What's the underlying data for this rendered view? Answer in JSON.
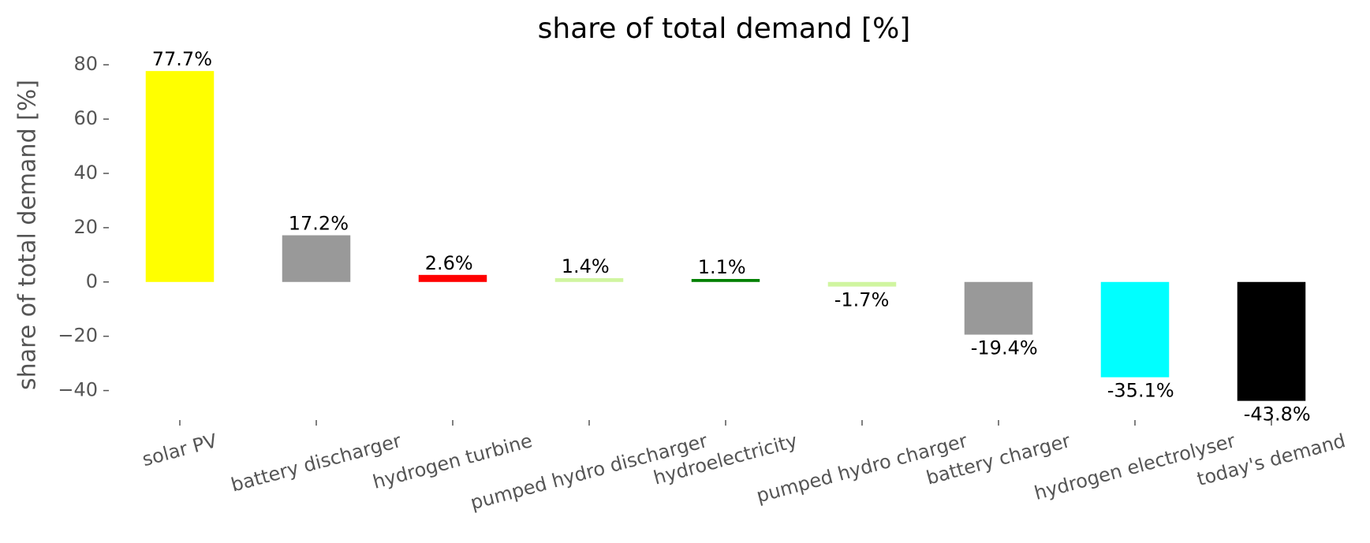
{
  "chart_data": {
    "type": "bar",
    "title": "share of total demand [%]",
    "y_label": "share of total demand [%]",
    "categories": [
      "solar PV",
      "battery discharger",
      "hydrogen turbine",
      "pumped hydro discharger",
      "hydroelectricity",
      "pumped hydro charger",
      "battery charger",
      "hydrogen electrolyser",
      "today's demand"
    ],
    "values": [
      77.7,
      17.2,
      2.6,
      1.4,
      1.1,
      -1.7,
      -19.4,
      -35.1,
      -43.8
    ],
    "value_labels": [
      "77.7%",
      "17.2%",
      "2.6%",
      "1.4%",
      "1.1%",
      "-1.7%",
      "-19.4%",
      "-35.1%",
      "-43.8%"
    ],
    "colors": [
      "#ffff00",
      "#999999",
      "#ff0000",
      "#d0f5a0",
      "#008000",
      "#d0f5a0",
      "#999999",
      "#00ffff",
      "#000000"
    ],
    "ylim": [
      -50,
      85
    ],
    "yticks": [
      {
        "value": -40,
        "label": "−40"
      },
      {
        "value": -20,
        "label": "−20"
      },
      0,
      20,
      40,
      60,
      80
    ],
    "grid": false
  }
}
